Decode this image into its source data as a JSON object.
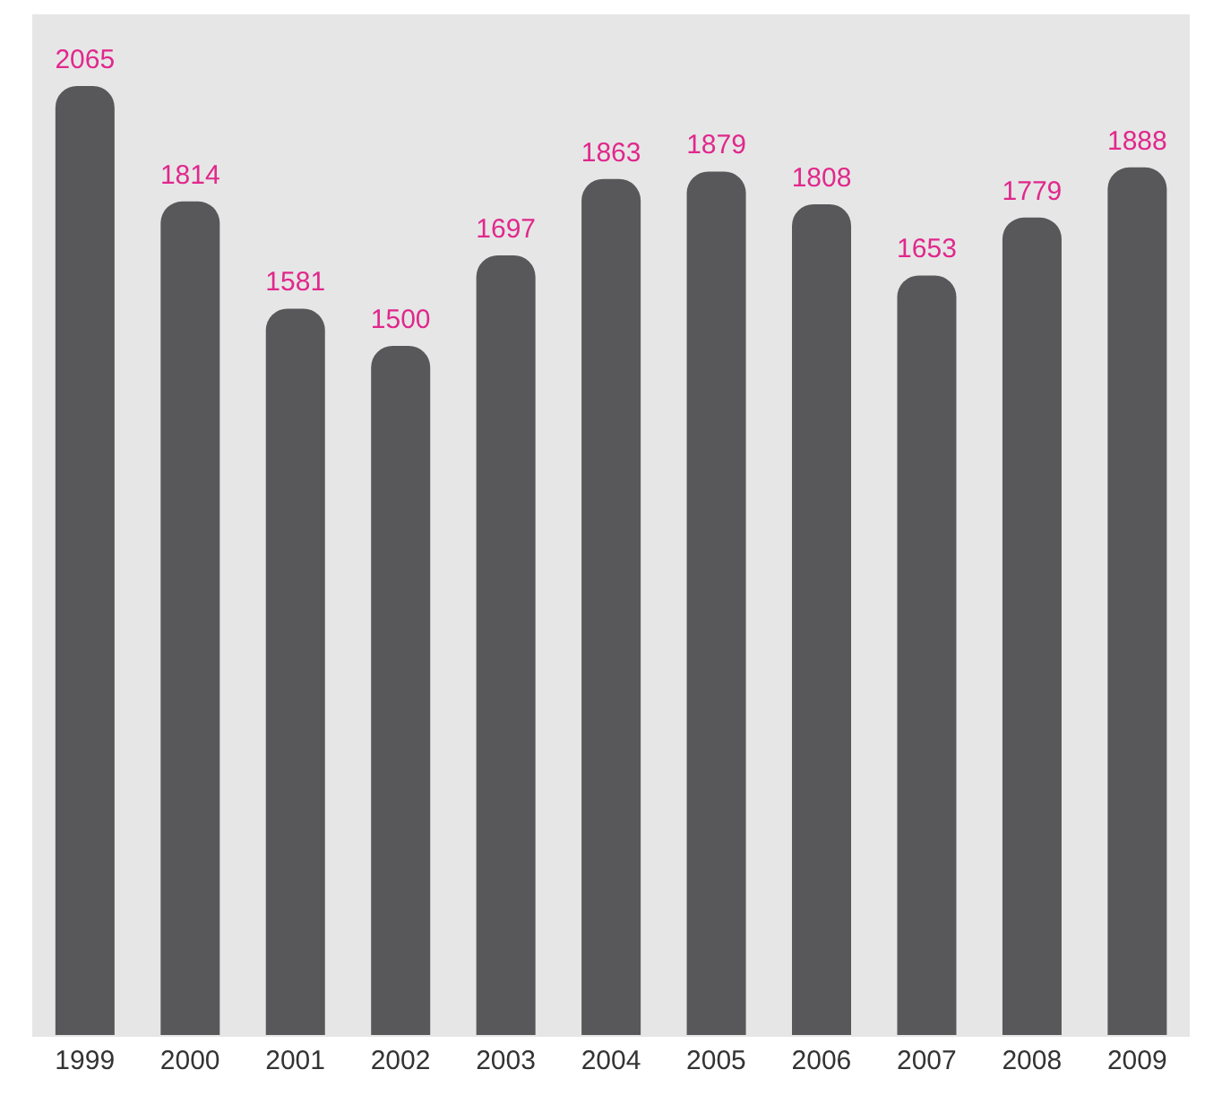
{
  "chart_data": {
    "type": "bar",
    "categories": [
      "1999",
      "2000",
      "2001",
      "2002",
      "2003",
      "2004",
      "2005",
      "2006",
      "2007",
      "2008",
      "2009"
    ],
    "values": [
      2065,
      1814,
      1581,
      1500,
      1697,
      1863,
      1879,
      1808,
      1653,
      1779,
      1888
    ],
    "color": "#58585a",
    "data_labels": true
  }
}
